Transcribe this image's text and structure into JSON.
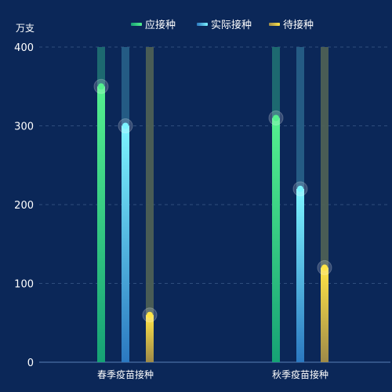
{
  "chart_data": {
    "type": "bar",
    "unit_label": "万支",
    "categories": [
      "春季疫苗接种",
      "秋季疫苗接种"
    ],
    "ylim": [
      0,
      400
    ],
    "yticks": [
      0,
      100,
      200,
      300,
      400
    ],
    "grid": true,
    "legend_position": "top",
    "series": [
      {
        "name": "应接种",
        "values": [
          350,
          310
        ],
        "color_top": "#54f08f",
        "color_bottom": "#16a275",
        "track_color": "#1f6f72"
      },
      {
        "name": "实际接种",
        "values": [
          300,
          220
        ],
        "color_top": "#7cf4ff",
        "color_bottom": "#2b78c0",
        "track_color": "#275f88"
      },
      {
        "name": "待接种",
        "values": [
          60,
          120
        ],
        "color_top": "#ffe447",
        "color_bottom": "#9e8a48",
        "track_color": "#4f6155"
      }
    ]
  }
}
